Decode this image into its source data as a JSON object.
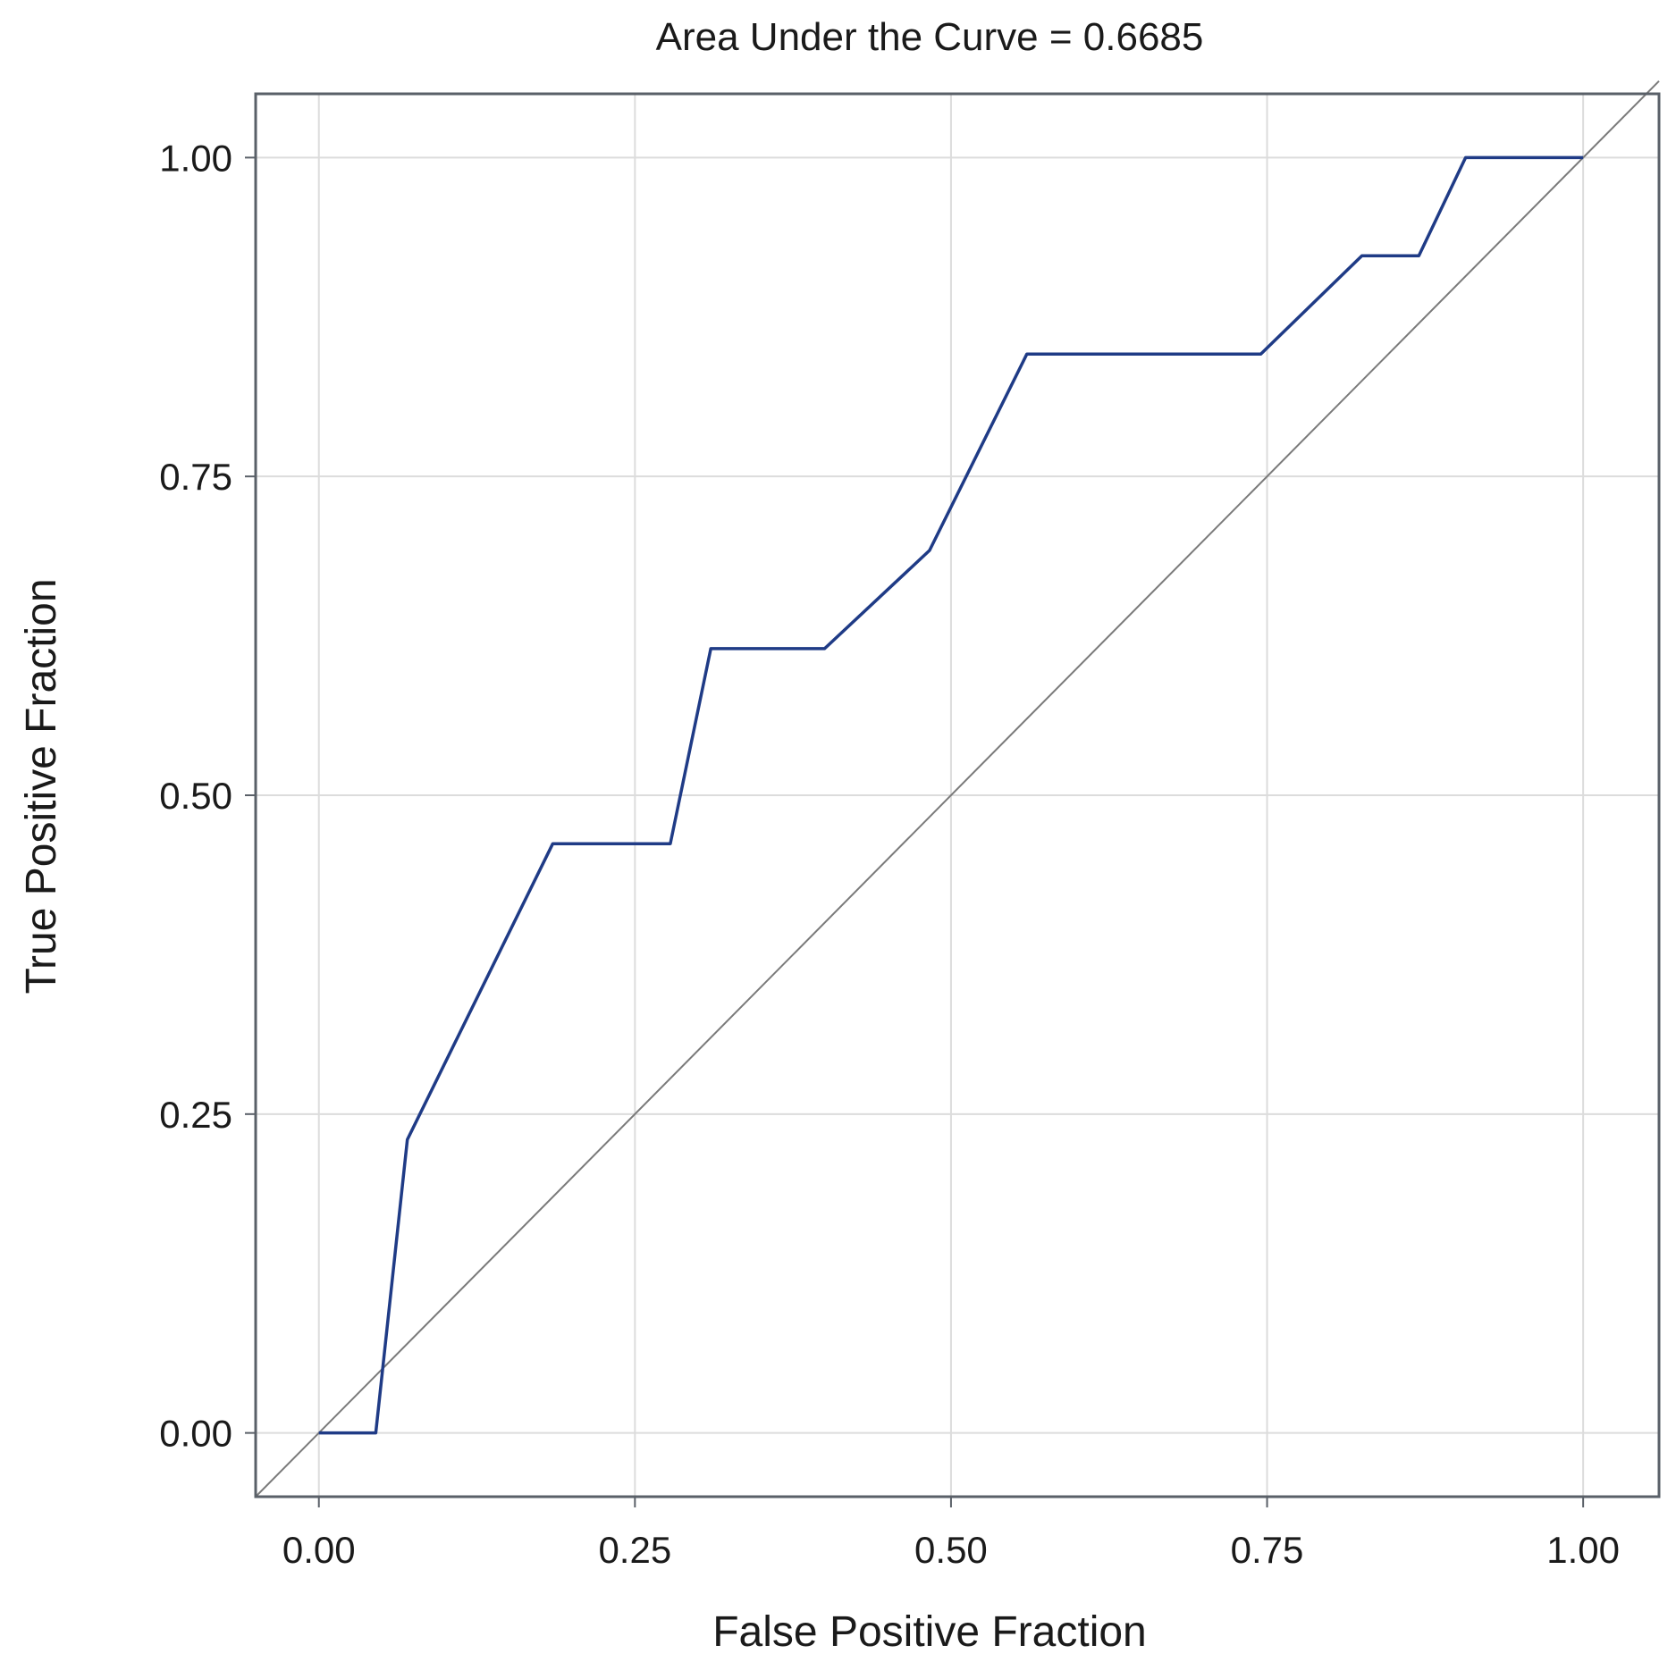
{
  "chart_data": {
    "type": "line",
    "title": "Area Under the Curve = 0.6685",
    "xlabel": "False Positive Fraction",
    "ylabel": "True Positive Fraction",
    "xlim": [
      -0.05,
      1.06
    ],
    "ylim": [
      -0.05,
      1.05
    ],
    "xticks": [
      0,
      0.25,
      0.5,
      0.75,
      1
    ],
    "yticks": [
      0,
      0.25,
      0.5,
      0.75,
      1
    ],
    "xtick_labels": [
      "0.00",
      "0.25",
      "0.50",
      "0.75",
      "1.00"
    ],
    "ytick_labels": [
      "0.00",
      "0.25",
      "0.50",
      "0.75",
      "1.00"
    ],
    "grid": true,
    "series": [
      {
        "points": [
          [
            0.0,
            0.0
          ],
          [
            0.045,
            0.0
          ],
          [
            0.07,
            0.23
          ],
          [
            0.185,
            0.462
          ],
          [
            0.278,
            0.462
          ],
          [
            0.31,
            0.615
          ],
          [
            0.4,
            0.615
          ],
          [
            0.483,
            0.692
          ],
          [
            0.56,
            0.846
          ],
          [
            0.745,
            0.846
          ],
          [
            0.825,
            0.923
          ],
          [
            0.87,
            0.923
          ],
          [
            0.907,
            1.0
          ],
          [
            1.0,
            1.0
          ]
        ],
        "color": "#1f3b86"
      }
    ],
    "reference_line": {
      "points": [
        [
          -0.05,
          -0.05
        ],
        [
          1.06,
          1.06
        ]
      ],
      "color": "#7a7a7a"
    }
  }
}
